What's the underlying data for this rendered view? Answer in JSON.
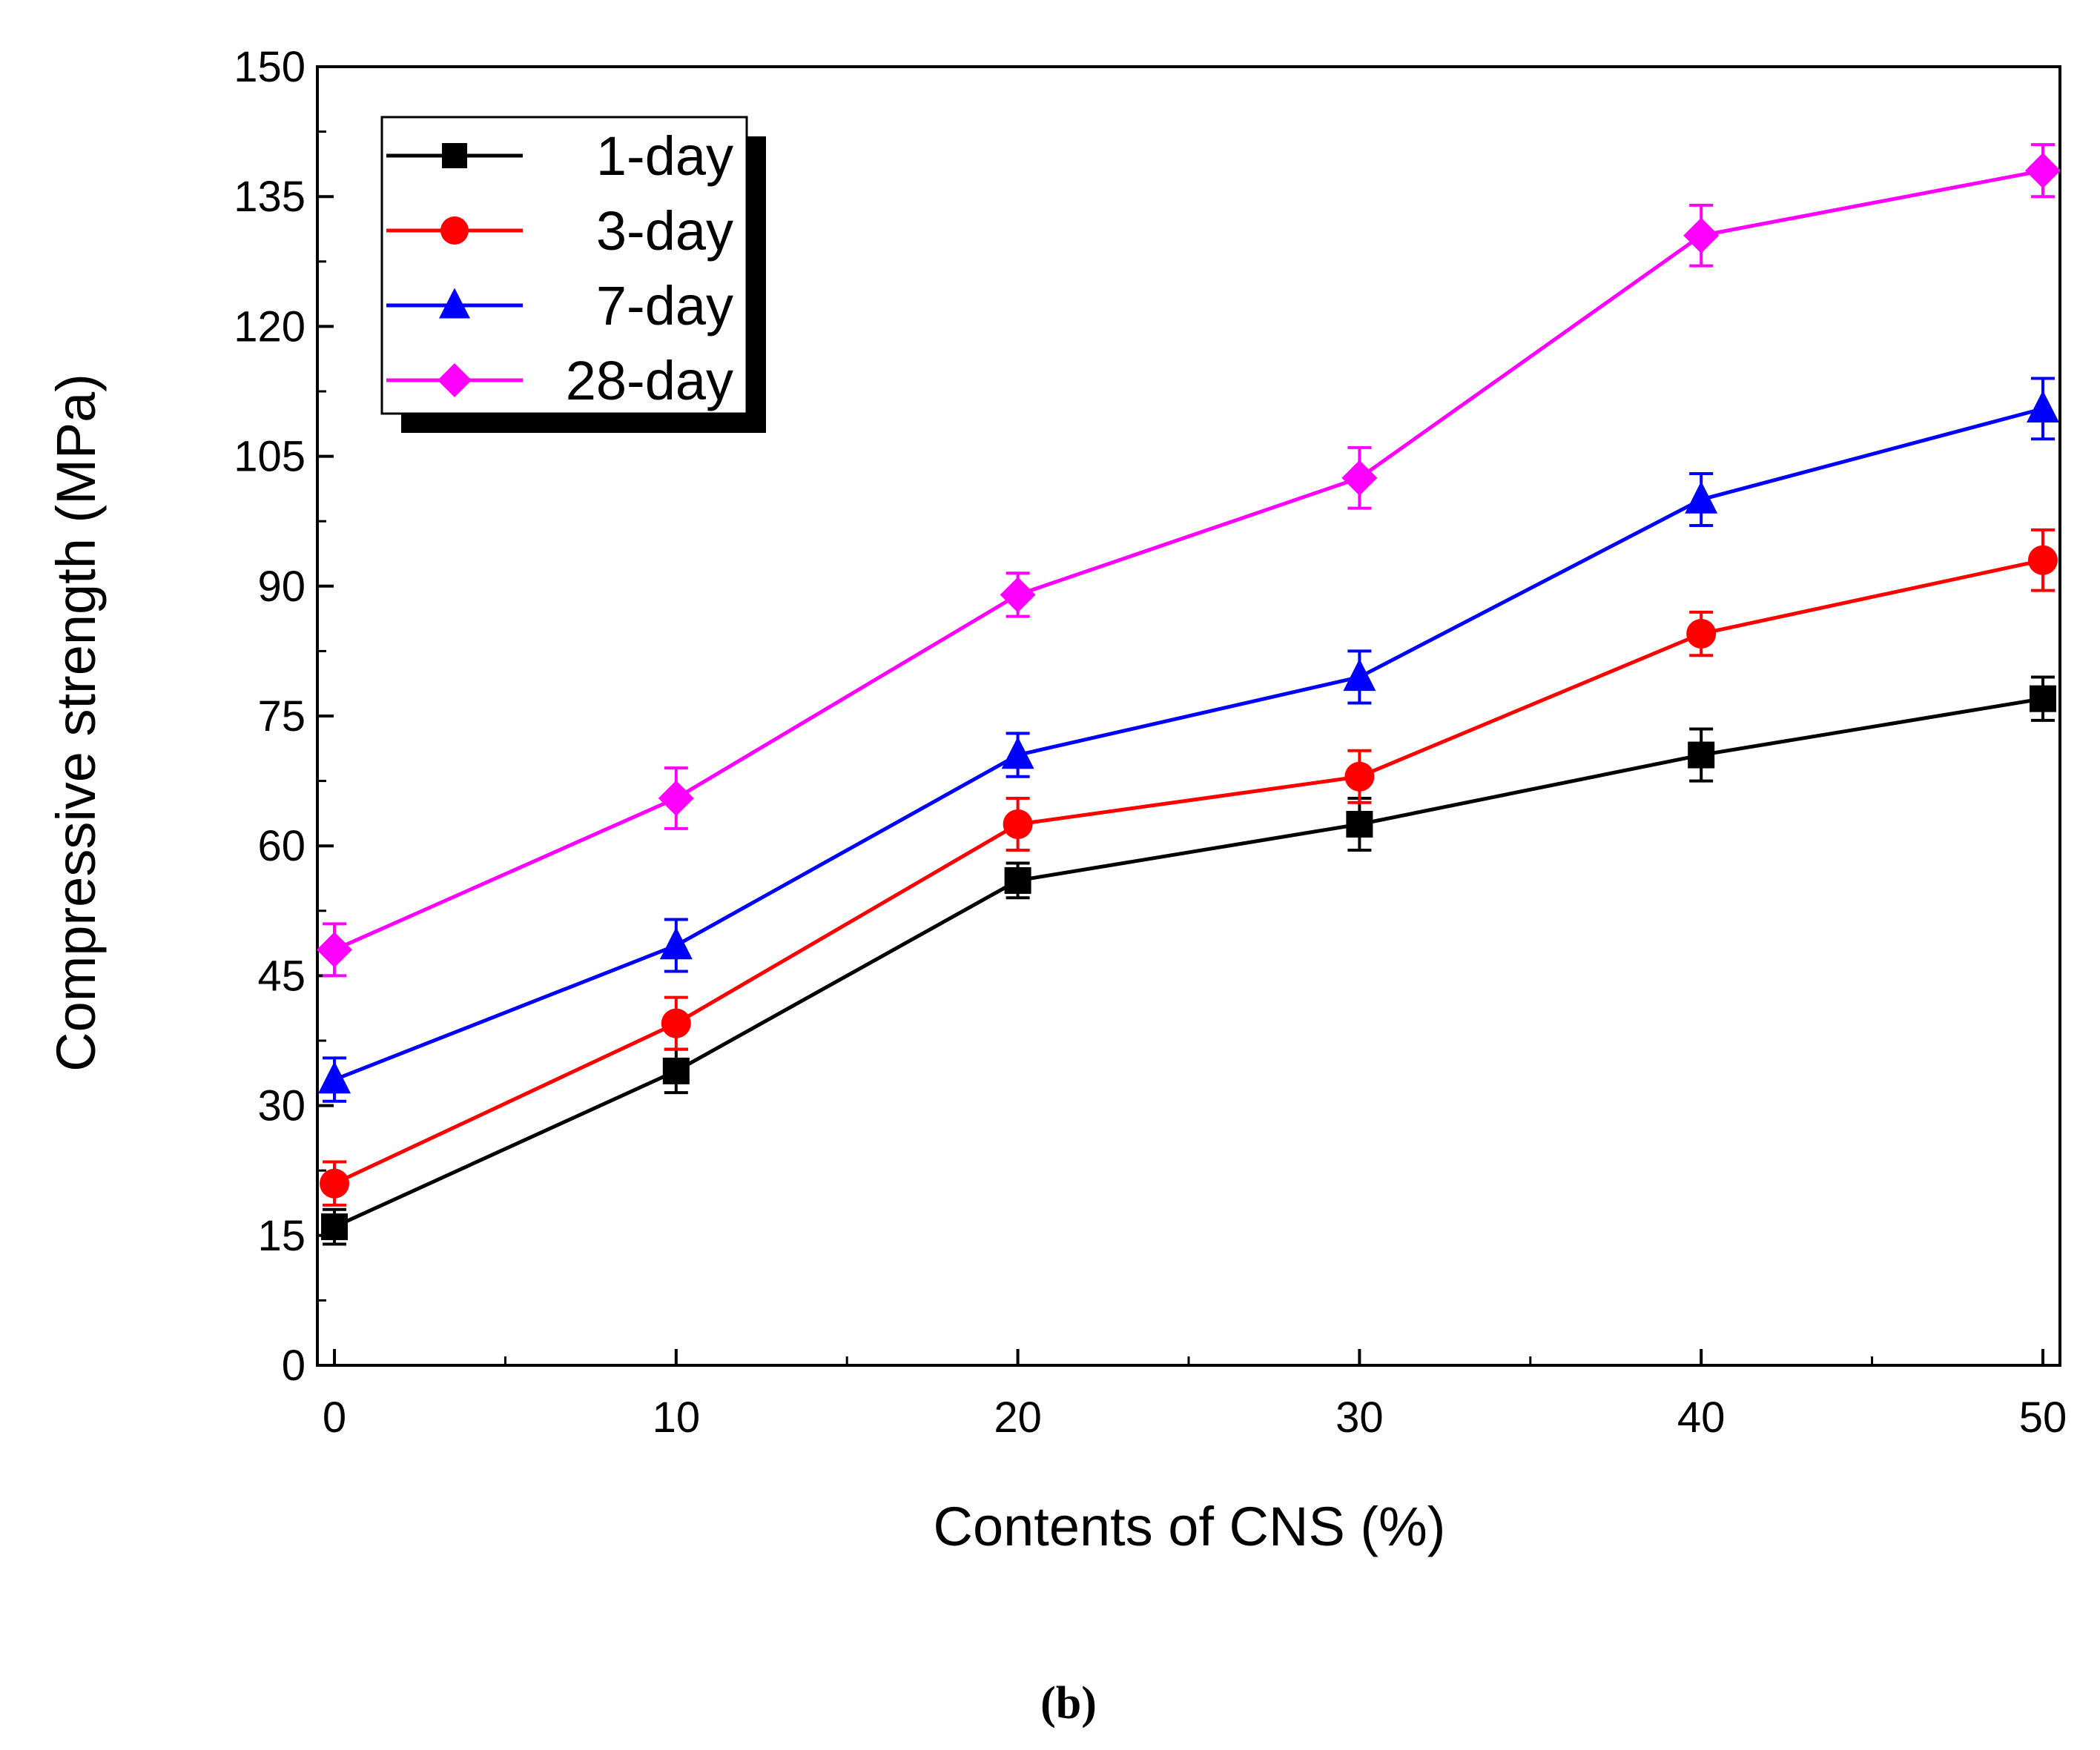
{
  "chart_data": {
    "type": "line",
    "title": "",
    "xlabel": "Contents of CNS (%)",
    "ylabel": "Compressive strength (MPa)",
    "xlim": [
      -0.5,
      50.5
    ],
    "ylim": [
      0,
      150
    ],
    "x_ticks": [
      0,
      10,
      20,
      30,
      40,
      50
    ],
    "x_tick_labels": [
      "0",
      "10",
      "20",
      "30",
      "40",
      "50"
    ],
    "y_ticks": [
      0,
      15,
      30,
      45,
      60,
      75,
      90,
      105,
      120,
      135,
      150
    ],
    "y_tick_labels": [
      "0",
      "15",
      "30",
      "45",
      "60",
      "75",
      "90",
      "105",
      "120",
      "135",
      "150"
    ],
    "grid": false,
    "legend_position": "top-left",
    "x": [
      0,
      10,
      20,
      30,
      40,
      50
    ],
    "series": [
      {
        "name": "1-day",
        "color": "#000000",
        "marker": "square",
        "values": [
          16,
          34,
          56,
          62.5,
          70.5,
          77
        ],
        "errors": [
          2,
          2.5,
          2,
          3,
          3,
          2.5
        ]
      },
      {
        "name": "3-day",
        "color": "#ff0000",
        "marker": "circle",
        "values": [
          21,
          39.5,
          62.5,
          68,
          84.5,
          93
        ],
        "errors": [
          2.5,
          3,
          3,
          3,
          2.5,
          3.5
        ]
      },
      {
        "name": "7-day",
        "color": "#0000ff",
        "marker": "triangle",
        "values": [
          33,
          48.5,
          70.5,
          79.5,
          100,
          110.5
        ],
        "errors": [
          2.5,
          3,
          2.5,
          3,
          3,
          3.5
        ]
      },
      {
        "name": "28-day",
        "color": "#ff00ff",
        "marker": "diamond",
        "values": [
          48,
          65.5,
          89,
          102.5,
          130.5,
          138
        ],
        "errors": [
          3,
          3.5,
          2.5,
          3.5,
          3.5,
          3
        ]
      }
    ]
  },
  "caption": "(b)"
}
